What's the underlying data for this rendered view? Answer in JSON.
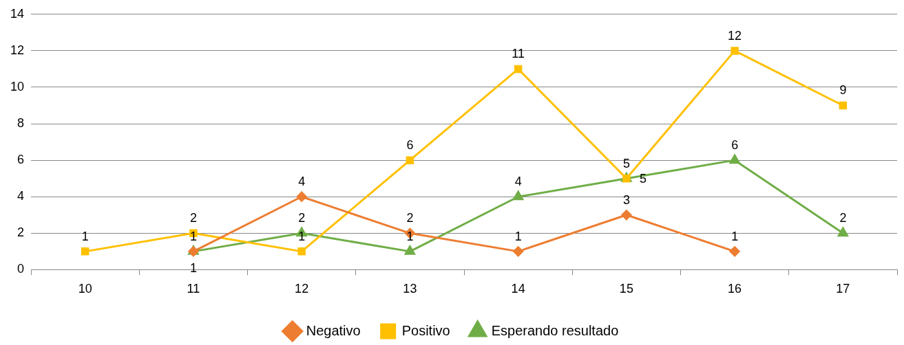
{
  "chart_data": {
    "type": "line",
    "categories": [
      "10",
      "11",
      "12",
      "13",
      "14",
      "15",
      "16",
      "17"
    ],
    "series": [
      {
        "name": "Negativo",
        "color": "#ed7d31",
        "marker": "diamond",
        "values": [
          null,
          1,
          4,
          2,
          1,
          3,
          1,
          null
        ]
      },
      {
        "name": "Positivo",
        "color": "#ffc000",
        "marker": "square",
        "values": [
          1,
          2,
          1,
          6,
          11,
          5,
          12,
          9
        ]
      },
      {
        "name": "Esperando resultado",
        "color": "#70ad47",
        "marker": "triangle",
        "values": [
          null,
          1,
          2,
          1,
          4,
          5,
          6,
          2
        ]
      }
    ],
    "ylim": [
      0,
      14
    ],
    "yticks": [
      0,
      2,
      4,
      6,
      8,
      10,
      12,
      14
    ],
    "grid": "y",
    "legend": "bottom",
    "data_labels": true
  }
}
